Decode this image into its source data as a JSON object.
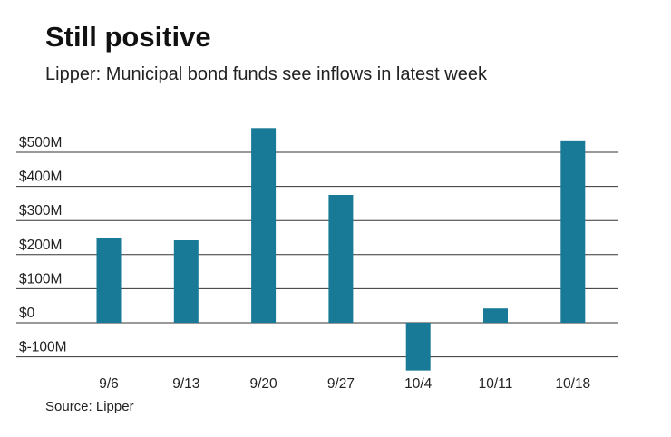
{
  "chart_data": {
    "type": "bar",
    "title": "Still positive",
    "subtitle": "Lipper: Municipal bond funds see inflows in latest week",
    "source": "Source: Lipper",
    "categories": [
      "9/6",
      "9/13",
      "9/20",
      "9/27",
      "10/4",
      "10/11",
      "10/18"
    ],
    "values": [
      250,
      242,
      571,
      375,
      -140,
      42,
      535
    ],
    "yticks": [
      -100,
      0,
      100,
      200,
      300,
      400,
      500
    ],
    "ytick_labels": [
      "$-100M",
      "$0",
      "$100M",
      "$200M",
      "$300M",
      "$400M",
      "$500M"
    ],
    "ylim": [
      -140,
      580
    ],
    "xlabel": "",
    "ylabel": "",
    "grid": true,
    "colors": {
      "bar": "#187a96",
      "grid": "#333333"
    }
  }
}
